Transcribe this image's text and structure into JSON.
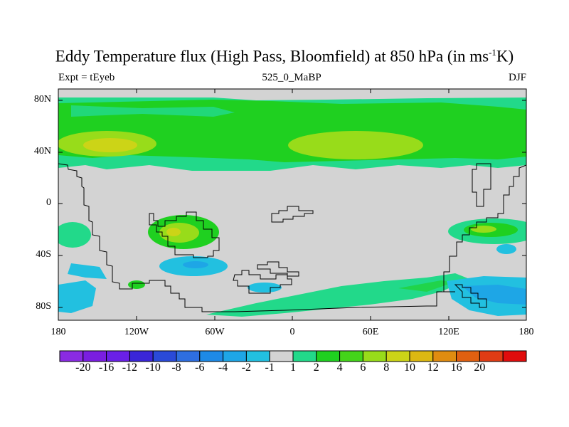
{
  "title": {
    "main": "Eddy Temperature flux (High Pass, Bloomfield) at 850 hPa (in ms",
    "sup": "-1",
    "end": "K)"
  },
  "left_label": "Expt = tEyeb",
  "center_label": "525_0_MaBP",
  "right_label": "DJF",
  "y_ticks": [
    "80N",
    "40N",
    "0",
    "40S",
    "80S"
  ],
  "x_ticks": [
    "180",
    "120W",
    "60W",
    "0",
    "60E",
    "120E",
    "180"
  ],
  "colorbar": {
    "colors": [
      "#8a2be2",
      "#7a1ee0",
      "#6a20e6",
      "#3a26d8",
      "#2a4ad8",
      "#2e6ee0",
      "#1e8ae6",
      "#1ea6e6",
      "#22c0e0",
      "#d3d3d3",
      "#22d98a",
      "#1fd020",
      "#44d41a",
      "#98dc1a",
      "#ccd417",
      "#dcb812",
      "#e08c10",
      "#e06010",
      "#e03c14",
      "#e00c0c"
    ],
    "labels": [
      "-20",
      "-16",
      "-12",
      "-10",
      "-8",
      "-6",
      "-4",
      "-2",
      "-1",
      "1",
      "2",
      "4",
      "6",
      "8",
      "10",
      "12",
      "16",
      "20"
    ]
  },
  "colors": {
    "background_field": "#d3d3d3",
    "green": "#22d98a",
    "bright_green": "#1fd020",
    "lime": "#98dc1a",
    "yellow": "#ccd417",
    "light_blue": "#22c0e0",
    "blue": "#1ea6e6"
  }
}
